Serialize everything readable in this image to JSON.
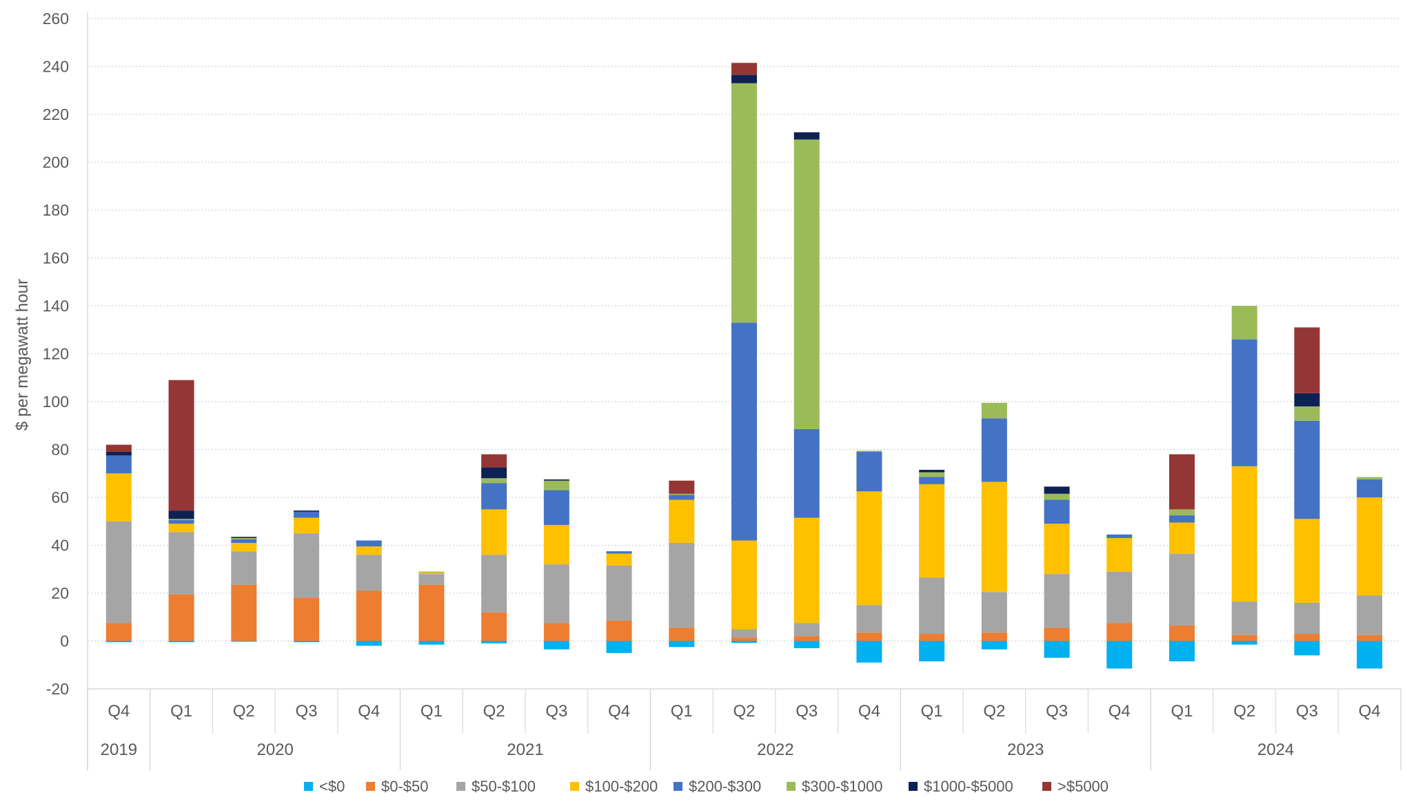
{
  "chart_data": {
    "type": "bar",
    "stacked": true,
    "title": "",
    "xlabel": "",
    "ylabel": "$ per megawatt hour",
    "ylim": [
      -20,
      260
    ],
    "ytick_step": 20,
    "grid": "horizontal-dotted",
    "legend_position": "bottom",
    "categories": [
      "Q4",
      "Q1",
      "Q2",
      "Q3",
      "Q4",
      "Q1",
      "Q2",
      "Q3",
      "Q4",
      "Q1",
      "Q2",
      "Q3",
      "Q4",
      "Q1",
      "Q2",
      "Q3",
      "Q4",
      "Q1",
      "Q2",
      "Q3",
      "Q4"
    ],
    "year_groups": [
      {
        "label": "2019",
        "count": 1
      },
      {
        "label": "2020",
        "count": 4
      },
      {
        "label": "2021",
        "count": 4
      },
      {
        "label": "2022",
        "count": 4
      },
      {
        "label": "2023",
        "count": 4
      },
      {
        "label": "2024",
        "count": 4
      }
    ],
    "series": [
      {
        "name": "<$0",
        "color": "#00B0F0",
        "values": [
          -0.5,
          -0.5,
          -0.3,
          -0.5,
          -2,
          -1.5,
          -1,
          -3.5,
          -5,
          -2.5,
          -0.8,
          -3,
          -9,
          -8.5,
          -3.5,
          -7,
          -11.5,
          -8.5,
          -1.5,
          -6,
          -11.5
        ]
      },
      {
        "name": "$0-$50",
        "color": "#ED7D31",
        "values": [
          7.5,
          19.5,
          23.5,
          18,
          21,
          23.5,
          12,
          7.5,
          8.5,
          5.5,
          1.5,
          2,
          3.5,
          3,
          3.5,
          5.5,
          7.5,
          6.5,
          2.5,
          3,
          2.5
        ]
      },
      {
        "name": "$50-$100",
        "color": "#A5A5A5",
        "values": [
          42.5,
          26,
          14,
          27,
          15,
          4.5,
          24,
          24.5,
          23,
          35.5,
          3.5,
          5.5,
          11.5,
          23.5,
          17,
          22.5,
          21.5,
          30,
          14,
          13,
          16.5
        ]
      },
      {
        "name": "$100-$200",
        "color": "#FFC000",
        "values": [
          20,
          3.5,
          3.5,
          6.5,
          3.5,
          0.5,
          19,
          16.5,
          5,
          18,
          37,
          44,
          47.5,
          39,
          46,
          21,
          14,
          13,
          56.5,
          35,
          41
        ]
      },
      {
        "name": "$200-$300",
        "color": "#4472C4",
        "values": [
          7.5,
          1.5,
          1.5,
          2.5,
          2.5,
          0,
          11,
          14.5,
          1,
          2,
          91,
          37,
          16.5,
          3,
          26.5,
          10,
          1.5,
          3,
          53,
          41,
          7.5
        ]
      },
      {
        "name": "$300-$1000",
        "color": "#9BBB59",
        "values": [
          0,
          0.5,
          0.5,
          0,
          0,
          0.5,
          2,
          4,
          0,
          0.5,
          100,
          121,
          0.5,
          2,
          6.5,
          2.5,
          0,
          2.5,
          14,
          6,
          1
        ]
      },
      {
        "name": "$1000-$5000",
        "color": "#0E2155",
        "values": [
          1.5,
          3.5,
          0.5,
          0.5,
          0,
          0,
          4.5,
          0.5,
          0,
          0,
          3.5,
          3,
          0,
          1,
          0,
          3,
          0,
          0,
          0,
          5.5,
          0
        ]
      },
      {
        "name": ">$5000",
        "color": "#943634",
        "values": [
          3,
          54.5,
          0,
          0,
          0,
          0,
          5.5,
          0,
          0,
          5.5,
          5,
          0,
          0,
          0,
          0,
          0,
          0,
          23,
          0,
          27.5,
          0
        ]
      }
    ]
  }
}
